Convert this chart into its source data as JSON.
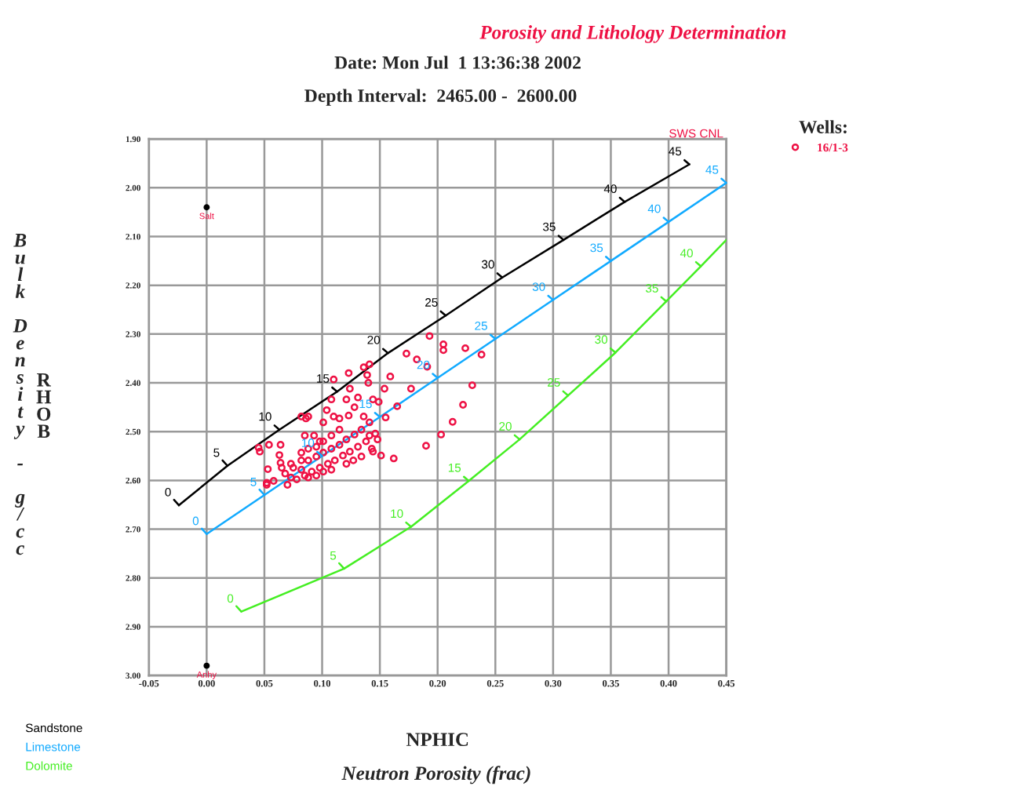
{
  "chart_data": {
    "type": "scatter",
    "title": "Porosity and Lithology Determination",
    "subtitle": "Date: Mon Jul  1 13:36:38 2002",
    "xlabel": "NPHIC",
    "ylabel": "RHOB",
    "legend_title": "Wells:",
    "legend": "top right",
    "grid": true,
    "xlim": [
      -0.05,
      0.45
    ],
    "xticks": [
      {
        "value": -0.05,
        "label": "-0.05"
      },
      {
        "value": 0,
        "label": "0.00"
      },
      {
        "value": 0.05,
        "label": "0.05"
      },
      {
        "value": 0.1,
        "label": "0.10"
      },
      {
        "value": 0.15,
        "label": "0.15"
      },
      {
        "value": 0.2,
        "label": "0.20"
      },
      {
        "value": 0.25,
        "label": "0.25"
      },
      {
        "value": 0.3,
        "label": "0.30"
      },
      {
        "value": 0.35,
        "label": "0.35"
      },
      {
        "value": 0.4,
        "label": "0.40"
      },
      {
        "value": 0.45,
        "label": "0.45"
      }
    ],
    "ylim": [
      3.0,
      1.9
    ],
    "yticks": [
      {
        "value": 1.9,
        "label": "1.90"
      },
      {
        "value": 2.0,
        "label": "2.00"
      },
      {
        "value": 2.1,
        "label": "2.10"
      },
      {
        "value": 2.2,
        "label": "2.20"
      },
      {
        "value": 2.3,
        "label": "2.30"
      },
      {
        "value": 2.4,
        "label": "2.40"
      },
      {
        "value": 2.5,
        "label": "2.50"
      },
      {
        "value": 2.6,
        "label": "2.60"
      },
      {
        "value": 2.7,
        "label": "2.70"
      },
      {
        "value": 2.8,
        "label": "2.80"
      },
      {
        "value": 2.9,
        "label": "2.90"
      },
      {
        "value": 3.0,
        "label": "3.00"
      }
    ],
    "annotations": [
      "Depth Interval:  2465.00 -  2600.00",
      "SWS CNL",
      "Bulk Density - g/cc",
      "Neutron Porosity (frac)",
      {
        "text": "Salt",
        "x": 0,
        "y": 2.04
      },
      {
        "text": "Anhy",
        "x": 0,
        "y": 2.98
      },
      {
        "text": "0",
        "x": -0.024,
        "y": 2.651
      },
      {
        "text": "5",
        "x": 0.018,
        "y": 2.57
      },
      {
        "text": "10",
        "x": 0.063,
        "y": 2.496
      },
      {
        "text": "15",
        "x": 0.113,
        "y": 2.418
      },
      {
        "text": "20",
        "x": 0.157,
        "y": 2.339
      },
      {
        "text": "25",
        "x": 0.207,
        "y": 2.262
      },
      {
        "text": "30",
        "x": 0.256,
        "y": 2.184
      },
      {
        "text": "35",
        "x": 0.309,
        "y": 2.107
      },
      {
        "text": "40",
        "x": 0.362,
        "y": 2.029
      },
      {
        "text": "45",
        "x": 0.418,
        "y": 1.952
      },
      {
        "text": "0",
        "x": 0,
        "y": 2.71
      },
      {
        "text": "5",
        "x": 0.05,
        "y": 2.63
      },
      {
        "text": "10",
        "x": 0.1,
        "y": 2.55
      },
      {
        "text": "15",
        "x": 0.15,
        "y": 2.47
      },
      {
        "text": "20",
        "x": 0.2,
        "y": 2.39
      },
      {
        "text": "25",
        "x": 0.25,
        "y": 2.31
      },
      {
        "text": "30",
        "x": 0.3,
        "y": 2.23
      },
      {
        "text": "35",
        "x": 0.35,
        "y": 2.15
      },
      {
        "text": "40",
        "x": 0.4,
        "y": 2.07
      },
      {
        "text": "45",
        "x": 0.45,
        "y": 1.99
      },
      {
        "text": "0",
        "x": 0.03,
        "y": 2.869
      },
      {
        "text": "5",
        "x": 0.119,
        "y": 2.781
      },
      {
        "text": "10",
        "x": 0.177,
        "y": 2.695
      },
      {
        "text": "15",
        "x": 0.227,
        "y": 2.601
      },
      {
        "text": "20",
        "x": 0.271,
        "y": 2.516
      },
      {
        "text": "25",
        "x": 0.313,
        "y": 2.426
      },
      {
        "text": "30",
        "x": 0.354,
        "y": 2.338
      },
      {
        "text": "35",
        "x": 0.398,
        "y": 2.233
      },
      {
        "text": "40",
        "x": 0.428,
        "y": 2.161
      }
    ],
    "series": [
      {
        "name": "16/1-3",
        "color": "#ee1144",
        "marker": "circle",
        "x": [
          0.193,
          0.205,
          0.205,
          0.224,
          0.238,
          0.173,
          0.182,
          0.191,
          0.23,
          0.177,
          0.222,
          0.213,
          0.203,
          0.19,
          0.162,
          0.151,
          0.165,
          0.155,
          0.159,
          0.154,
          0.141,
          0.136,
          0.123,
          0.139,
          0.11,
          0.124,
          0.14,
          0.045,
          0.046,
          0.054,
          0.064,
          0.063,
          0.064,
          0.052,
          0.053,
          0.082,
          0.086,
          0.088,
          0.085,
          0.101,
          0.115,
          0.128,
          0.108,
          0.121,
          0.131,
          0.144,
          0.149,
          0.104,
          0.11,
          0.123,
          0.136,
          0.141,
          0.093,
          0.098,
          0.088,
          0.082,
          0.075,
          0.068,
          0.065,
          0.073,
          0.078,
          0.085,
          0.091,
          0.098,
          0.105,
          0.111,
          0.118,
          0.124,
          0.131,
          0.138,
          0.141,
          0.146,
          0.148,
          0.143,
          0.144,
          0.134,
          0.127,
          0.121,
          0.108,
          0.101,
          0.095,
          0.088,
          0.082,
          0.088,
          0.095,
          0.101,
          0.108,
          0.115,
          0.121,
          0.128,
          0.134,
          0.115,
          0.108,
          0.101,
          0.095,
          0.082,
          0.073,
          0.07,
          0.052,
          0.058
        ],
        "values": [
          2.304,
          2.321,
          2.333,
          2.329,
          2.342,
          2.34,
          2.352,
          2.367,
          2.405,
          2.412,
          2.445,
          2.48,
          2.506,
          2.529,
          2.555,
          2.549,
          2.448,
          2.471,
          2.387,
          2.412,
          2.362,
          2.368,
          2.38,
          2.384,
          2.393,
          2.412,
          2.4,
          2.533,
          2.541,
          2.527,
          2.527,
          2.548,
          2.564,
          2.605,
          2.577,
          2.469,
          2.473,
          2.469,
          2.508,
          2.481,
          2.473,
          2.45,
          2.434,
          2.434,
          2.43,
          2.434,
          2.439,
          2.456,
          2.469,
          2.467,
          2.469,
          2.481,
          2.508,
          2.52,
          2.535,
          2.559,
          2.574,
          2.586,
          2.574,
          2.594,
          2.598,
          2.59,
          2.582,
          2.574,
          2.566,
          2.559,
          2.549,
          2.541,
          2.531,
          2.52,
          2.508,
          2.504,
          2.516,
          2.535,
          2.541,
          2.551,
          2.559,
          2.566,
          2.578,
          2.582,
          2.59,
          2.594,
          2.578,
          2.559,
          2.551,
          2.543,
          2.535,
          2.527,
          2.516,
          2.506,
          2.496,
          2.496,
          2.508,
          2.52,
          2.531,
          2.543,
          2.566,
          2.609,
          2.609,
          2.601
        ]
      },
      {
        "color": "#000000",
        "marker": "circle",
        "x": [
          0,
          0
        ],
        "values": [
          2.04,
          2.98
        ]
      },
      {
        "type": "line",
        "name": "Sandstone",
        "color": "#000000",
        "x": [
          -0.024,
          0.018,
          0.063,
          0.113,
          0.157,
          0.207,
          0.256,
          0.309,
          0.362,
          0.418
        ],
        "values": [
          2.651,
          2.57,
          2.496,
          2.418,
          2.339,
          2.262,
          2.184,
          2.107,
          2.029,
          1.952
        ]
      },
      {
        "type": "line",
        "name": "Limestone",
        "color": "#11aaff",
        "x": [
          0,
          0.05,
          0.1,
          0.15,
          0.2,
          0.25,
          0.3,
          0.35,
          0.4,
          0.45
        ],
        "values": [
          2.71,
          2.63,
          2.55,
          2.47,
          2.39,
          2.31,
          2.23,
          2.15,
          2.07,
          1.99
        ]
      },
      {
        "type": "line",
        "name": "Dolomite",
        "color": "#44ee22",
        "x": [
          0.03,
          0.119,
          0.177,
          0.227,
          0.271,
          0.313,
          0.354,
          0.398,
          0.428,
          0.45
        ],
        "values": [
          2.869,
          2.781,
          2.695,
          2.601,
          2.516,
          2.426,
          2.338,
          2.233,
          2.161,
          2.107
        ]
      }
    ]
  }
}
